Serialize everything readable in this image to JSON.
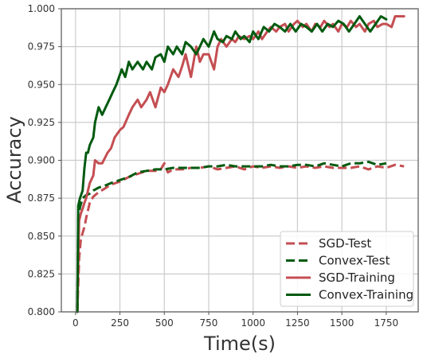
{
  "chart_data": {
    "type": "line",
    "title": "",
    "xlabel": "Time(s)",
    "ylabel": "Accuracy",
    "xlim": [
      -80,
      1930
    ],
    "ylim": [
      0.8,
      1.0
    ],
    "x_ticks": [
      0,
      250,
      500,
      750,
      1000,
      1250,
      1500,
      1750
    ],
    "y_ticks": [
      0.8,
      0.825,
      0.85,
      0.875,
      0.9,
      0.925,
      0.95,
      0.975,
      1.0
    ],
    "y_tick_labels": [
      "0.800",
      "0.825",
      "0.850",
      "0.875",
      "0.900",
      "0.925",
      "0.950",
      "0.975",
      "1.000"
    ],
    "grid": true,
    "legend_position": "bottom-right",
    "series": [
      {
        "name": "SGD-Test",
        "color": "#c44e52",
        "dash": "dashed",
        "points": [
          [
            10,
            0.8
          ],
          [
            20,
            0.835
          ],
          [
            30,
            0.848
          ],
          [
            40,
            0.852
          ],
          [
            50,
            0.856
          ],
          [
            60,
            0.862
          ],
          [
            80,
            0.872
          ],
          [
            100,
            0.876
          ],
          [
            130,
            0.879
          ],
          [
            160,
            0.881
          ],
          [
            200,
            0.884
          ],
          [
            250,
            0.886
          ],
          [
            300,
            0.889
          ],
          [
            350,
            0.891
          ],
          [
            400,
            0.893
          ],
          [
            450,
            0.893
          ],
          [
            480,
            0.894
          ],
          [
            500,
            0.898
          ],
          [
            520,
            0.892
          ],
          [
            550,
            0.894
          ],
          [
            600,
            0.894
          ],
          [
            650,
            0.895
          ],
          [
            700,
            0.895
          ],
          [
            750,
            0.896
          ],
          [
            800,
            0.894
          ],
          [
            850,
            0.895
          ],
          [
            900,
            0.896
          ],
          [
            950,
            0.894
          ],
          [
            1000,
            0.896
          ],
          [
            1050,
            0.895
          ],
          [
            1100,
            0.896
          ],
          [
            1150,
            0.895
          ],
          [
            1200,
            0.896
          ],
          [
            1250,
            0.895
          ],
          [
            1300,
            0.896
          ],
          [
            1350,
            0.895
          ],
          [
            1400,
            0.896
          ],
          [
            1450,
            0.895
          ],
          [
            1500,
            0.895
          ],
          [
            1550,
            0.895
          ],
          [
            1600,
            0.896
          ],
          [
            1650,
            0.894
          ],
          [
            1700,
            0.896
          ],
          [
            1750,
            0.895
          ],
          [
            1800,
            0.897
          ],
          [
            1850,
            0.896
          ]
        ]
      },
      {
        "name": "Convex-Test",
        "color": "#005a0f",
        "dash": "dashed",
        "points": [
          [
            10,
            0.8
          ],
          [
            15,
            0.862
          ],
          [
            25,
            0.869
          ],
          [
            40,
            0.875
          ],
          [
            60,
            0.877
          ],
          [
            80,
            0.878
          ],
          [
            100,
            0.88
          ],
          [
            130,
            0.882
          ],
          [
            160,
            0.883
          ],
          [
            200,
            0.885
          ],
          [
            250,
            0.887
          ],
          [
            300,
            0.889
          ],
          [
            350,
            0.892
          ],
          [
            400,
            0.893
          ],
          [
            450,
            0.894
          ],
          [
            500,
            0.894
          ],
          [
            550,
            0.895
          ],
          [
            600,
            0.895
          ],
          [
            650,
            0.895
          ],
          [
            700,
            0.895
          ],
          [
            750,
            0.896
          ],
          [
            800,
            0.896
          ],
          [
            850,
            0.897
          ],
          [
            900,
            0.896
          ],
          [
            950,
            0.896
          ],
          [
            1000,
            0.896
          ],
          [
            1050,
            0.896
          ],
          [
            1100,
            0.897
          ],
          [
            1150,
            0.896
          ],
          [
            1200,
            0.896
          ],
          [
            1250,
            0.897
          ],
          [
            1300,
            0.897
          ],
          [
            1350,
            0.896
          ],
          [
            1400,
            0.898
          ],
          [
            1450,
            0.897
          ],
          [
            1500,
            0.896
          ],
          [
            1550,
            0.898
          ],
          [
            1600,
            0.898
          ],
          [
            1650,
            0.899
          ],
          [
            1700,
            0.897
          ],
          [
            1750,
            0.898
          ]
        ]
      },
      {
        "name": "SGD-Training",
        "color": "#c44e52",
        "dash": "solid",
        "points": [
          [
            10,
            0.8
          ],
          [
            20,
            0.86
          ],
          [
            30,
            0.865
          ],
          [
            40,
            0.868
          ],
          [
            50,
            0.872
          ],
          [
            60,
            0.875
          ],
          [
            70,
            0.88
          ],
          [
            80,
            0.885
          ],
          [
            100,
            0.89
          ],
          [
            110,
            0.9
          ],
          [
            130,
            0.898
          ],
          [
            150,
            0.898
          ],
          [
            180,
            0.905
          ],
          [
            200,
            0.908
          ],
          [
            220,
            0.915
          ],
          [
            250,
            0.92
          ],
          [
            270,
            0.922
          ],
          [
            300,
            0.93
          ],
          [
            320,
            0.935
          ],
          [
            350,
            0.94
          ],
          [
            370,
            0.935
          ],
          [
            400,
            0.94
          ],
          [
            420,
            0.945
          ],
          [
            450,
            0.935
          ],
          [
            480,
            0.948
          ],
          [
            500,
            0.945
          ],
          [
            520,
            0.95
          ],
          [
            550,
            0.96
          ],
          [
            580,
            0.955
          ],
          [
            600,
            0.962
          ],
          [
            620,
            0.97
          ],
          [
            650,
            0.955
          ],
          [
            680,
            0.975
          ],
          [
            700,
            0.965
          ],
          [
            720,
            0.97
          ],
          [
            750,
            0.97
          ],
          [
            780,
            0.96
          ],
          [
            800,
            0.975
          ],
          [
            820,
            0.98
          ],
          [
            850,
            0.975
          ],
          [
            880,
            0.98
          ],
          [
            900,
            0.978
          ],
          [
            920,
            0.982
          ],
          [
            950,
            0.98
          ],
          [
            980,
            0.982
          ],
          [
            1000,
            0.98
          ],
          [
            1030,
            0.985
          ],
          [
            1050,
            0.98
          ],
          [
            1080,
            0.985
          ],
          [
            1100,
            0.988
          ],
          [
            1130,
            0.985
          ],
          [
            1150,
            0.988
          ],
          [
            1180,
            0.99
          ],
          [
            1200,
            0.985
          ],
          [
            1230,
            0.99
          ],
          [
            1250,
            0.992
          ],
          [
            1280,
            0.988
          ],
          [
            1300,
            0.99
          ],
          [
            1330,
            0.985
          ],
          [
            1350,
            0.99
          ],
          [
            1380,
            0.988
          ],
          [
            1400,
            0.992
          ],
          [
            1430,
            0.988
          ],
          [
            1450,
            0.99
          ],
          [
            1480,
            0.985
          ],
          [
            1500,
            0.99
          ],
          [
            1530,
            0.988
          ],
          [
            1550,
            0.992
          ],
          [
            1580,
            0.988
          ],
          [
            1600,
            0.99
          ],
          [
            1630,
            0.985
          ],
          [
            1650,
            0.99
          ],
          [
            1680,
            0.992
          ],
          [
            1700,
            0.988
          ],
          [
            1730,
            0.99
          ],
          [
            1750,
            0.99
          ],
          [
            1780,
            0.988
          ],
          [
            1800,
            0.995
          ],
          [
            1850,
            0.995
          ]
        ]
      },
      {
        "name": "Convex-Training",
        "color": "#005a0f",
        "dash": "solid",
        "points": [
          [
            10,
            0.8
          ],
          [
            15,
            0.87
          ],
          [
            25,
            0.875
          ],
          [
            40,
            0.88
          ],
          [
            50,
            0.895
          ],
          [
            60,
            0.905
          ],
          [
            70,
            0.905
          ],
          [
            80,
            0.91
          ],
          [
            100,
            0.915
          ],
          [
            110,
            0.925
          ],
          [
            130,
            0.935
          ],
          [
            150,
            0.93
          ],
          [
            170,
            0.935
          ],
          [
            190,
            0.94
          ],
          [
            210,
            0.945
          ],
          [
            230,
            0.95
          ],
          [
            260,
            0.96
          ],
          [
            280,
            0.955
          ],
          [
            300,
            0.965
          ],
          [
            320,
            0.96
          ],
          [
            350,
            0.965
          ],
          [
            380,
            0.96
          ],
          [
            400,
            0.965
          ],
          [
            430,
            0.96
          ],
          [
            450,
            0.968
          ],
          [
            480,
            0.97
          ],
          [
            500,
            0.965
          ],
          [
            520,
            0.975
          ],
          [
            550,
            0.97
          ],
          [
            570,
            0.975
          ],
          [
            600,
            0.97
          ],
          [
            620,
            0.978
          ],
          [
            650,
            0.975
          ],
          [
            680,
            0.97
          ],
          [
            700,
            0.975
          ],
          [
            720,
            0.98
          ],
          [
            750,
            0.975
          ],
          [
            780,
            0.985
          ],
          [
            800,
            0.98
          ],
          [
            830,
            0.978
          ],
          [
            850,
            0.982
          ],
          [
            880,
            0.98
          ],
          [
            900,
            0.985
          ],
          [
            930,
            0.98
          ],
          [
            950,
            0.982
          ],
          [
            980,
            0.978
          ],
          [
            1000,
            0.985
          ],
          [
            1030,
            0.98
          ],
          [
            1060,
            0.988
          ],
          [
            1090,
            0.985
          ],
          [
            1120,
            0.99
          ],
          [
            1150,
            0.988
          ],
          [
            1180,
            0.985
          ],
          [
            1210,
            0.99
          ],
          [
            1240,
            0.985
          ],
          [
            1270,
            0.99
          ],
          [
            1300,
            0.988
          ],
          [
            1330,
            0.985
          ],
          [
            1360,
            0.99
          ],
          [
            1390,
            0.985
          ],
          [
            1420,
            0.99
          ],
          [
            1450,
            0.988
          ],
          [
            1480,
            0.992
          ],
          [
            1510,
            0.99
          ],
          [
            1540,
            0.985
          ],
          [
            1570,
            0.99
          ],
          [
            1600,
            0.995
          ],
          [
            1630,
            0.99
          ],
          [
            1660,
            0.985
          ],
          [
            1690,
            0.99
          ],
          [
            1720,
            0.995
          ],
          [
            1750,
            0.993
          ]
        ]
      }
    ]
  }
}
